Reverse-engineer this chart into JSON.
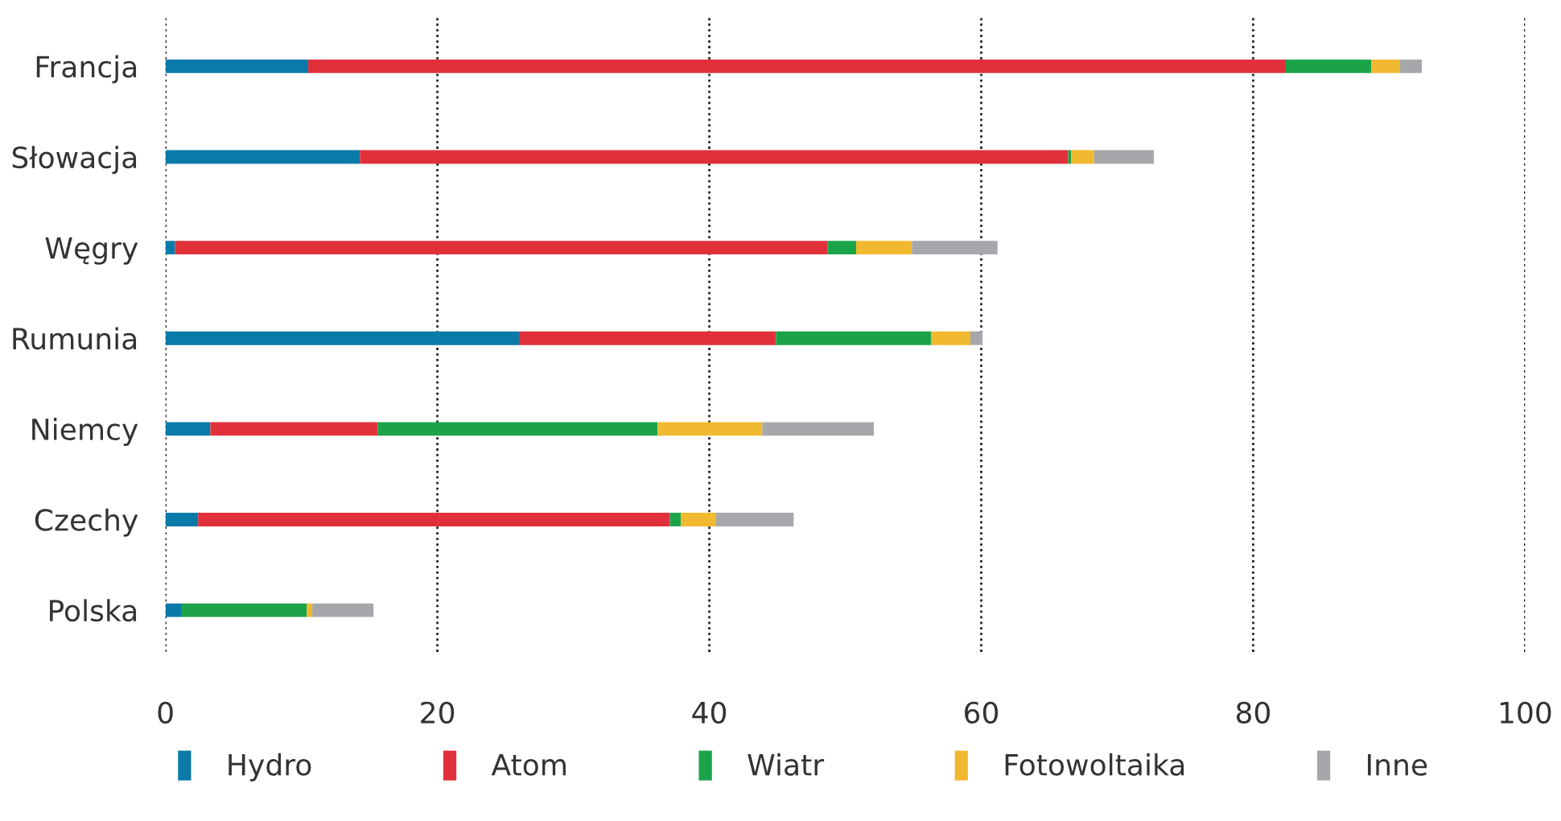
{
  "chart_data": {
    "type": "bar",
    "orientation": "horizontal",
    "stacked": true,
    "categories": [
      "Francja",
      "Słowacja",
      "Węgry",
      "Rumunia",
      "Niemcy",
      "Czechy",
      "Polska"
    ],
    "series": [
      {
        "name": "Hydro",
        "color": "#0a7aa8",
        "values": [
          10.5,
          14.3,
          0.7,
          26.0,
          3.3,
          2.4,
          1.2
        ]
      },
      {
        "name": "Atom",
        "color": "#e0313b",
        "values": [
          71.9,
          52.1,
          48.0,
          18.9,
          12.3,
          34.7,
          0
        ]
      },
      {
        "name": "Wiatr",
        "color": "#1ba34a",
        "values": [
          6.3,
          0.2,
          2.1,
          11.4,
          20.6,
          0.8,
          9.2
        ]
      },
      {
        "name": "Fotowoltaika",
        "color": "#f0b92f",
        "values": [
          2.1,
          1.7,
          4.1,
          2.9,
          7.7,
          2.6,
          0.4
        ]
      },
      {
        "name": "Inne",
        "color": "#a6a7ab",
        "values": [
          1.6,
          4.4,
          6.3,
          0.9,
          8.2,
          5.7,
          4.5
        ]
      }
    ],
    "xlim": [
      0,
      100
    ],
    "xticks": [
      0,
      20,
      40,
      60,
      80,
      100
    ],
    "grid": "x",
    "legend": "bottom"
  }
}
